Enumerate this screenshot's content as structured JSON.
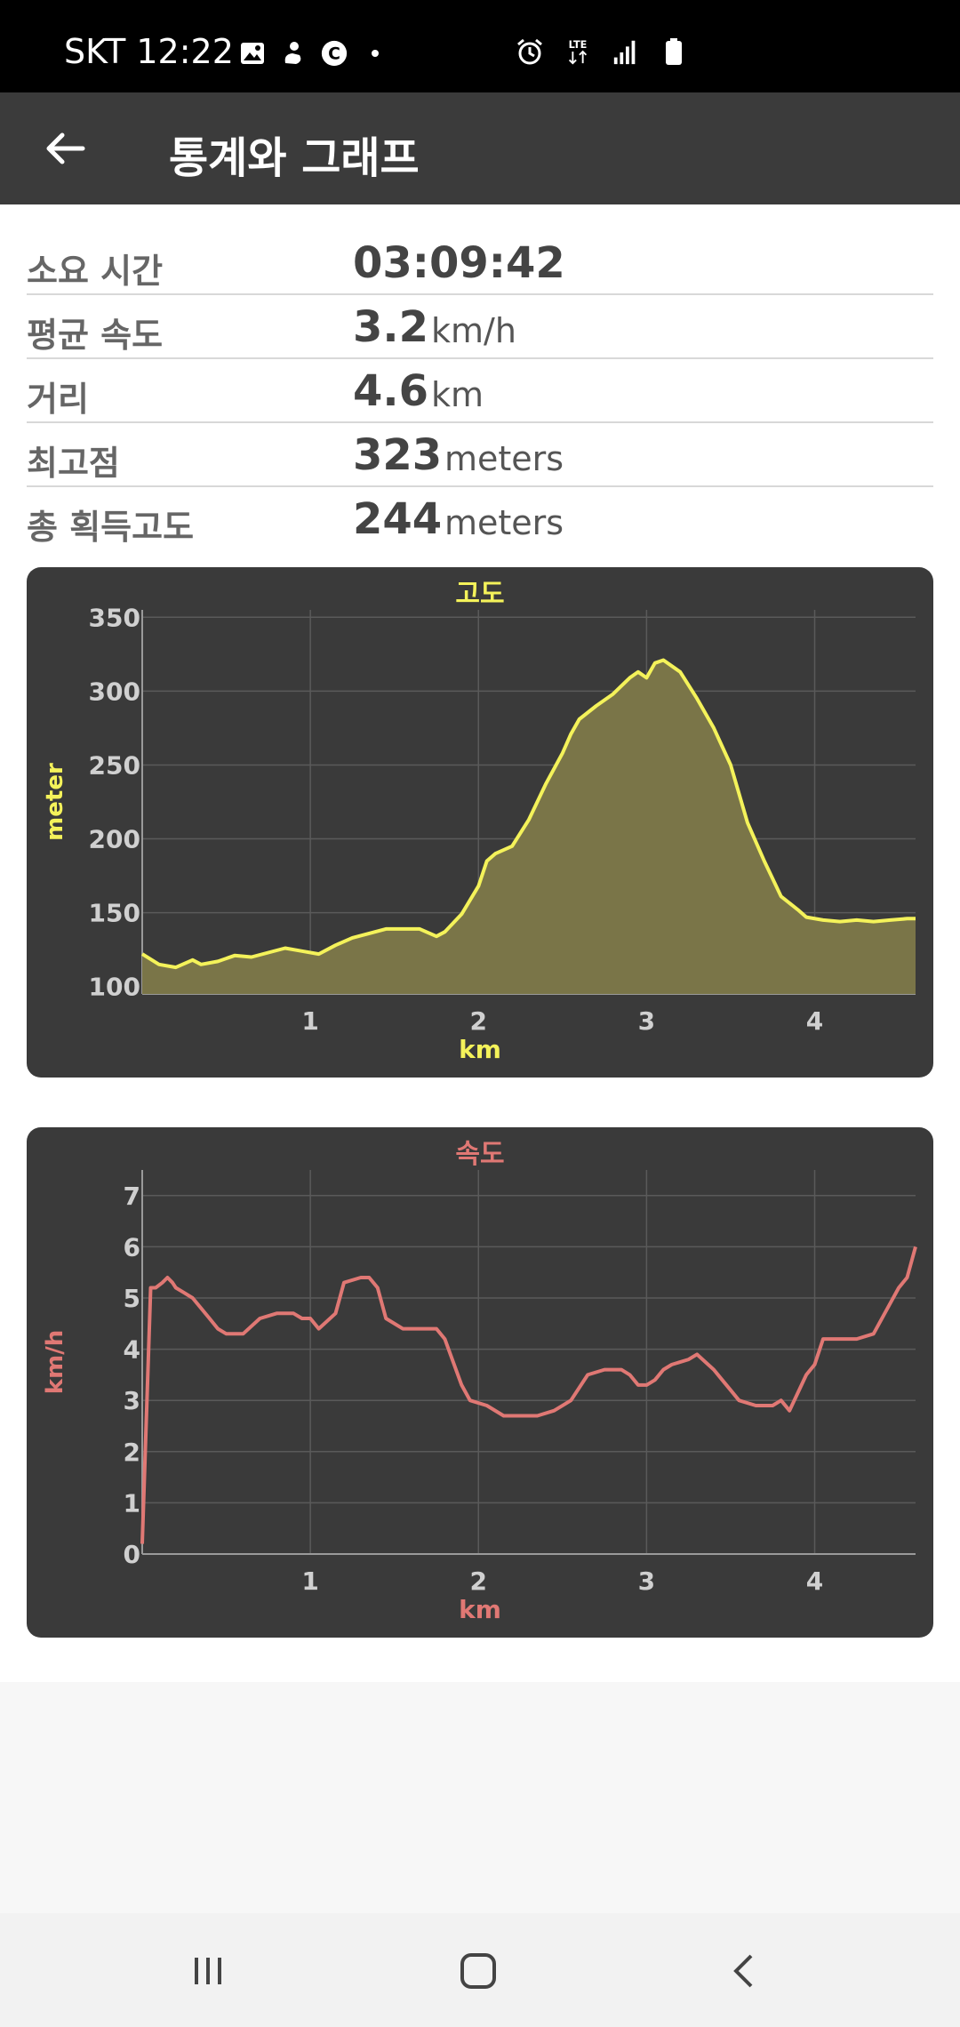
{
  "status_bar": {
    "time": "SKT 12:22",
    "icons": [
      "image-icon",
      "hand-icon",
      "c-icon",
      "dot-icon",
      "alarm-icon",
      "lte-icon",
      "signal-icon",
      "battery-icon"
    ]
  },
  "app_bar": {
    "title": "통계와 그래프",
    "back_icon": "arrow-back-icon"
  },
  "stats": [
    {
      "label": "소요 시간",
      "value": "03:09:42",
      "unit": ""
    },
    {
      "label": "평균 속도",
      "value": "3.2",
      "unit": "km/h"
    },
    {
      "label": "거리",
      "value": "4.6",
      "unit": "km"
    },
    {
      "label": "최고점",
      "value": "323",
      "unit": "meters"
    },
    {
      "label": "총 획득고도",
      "value": "244",
      "unit": "meters"
    }
  ],
  "chart_data": [
    {
      "type": "area",
      "title": "고도",
      "xlabel": "km",
      "ylabel": "meter",
      "xlim": [
        0,
        4.6
      ],
      "ylim": [
        95,
        355
      ],
      "xticks": [
        1,
        2,
        3,
        4
      ],
      "yticks": [
        100,
        150,
        200,
        250,
        300,
        350
      ],
      "grid": true,
      "line_color": "#f4f25a",
      "fill_color": "#7a7548",
      "x": [
        0,
        0.1,
        0.2,
        0.3,
        0.35,
        0.45,
        0.55,
        0.65,
        0.75,
        0.85,
        0.95,
        1.05,
        1.15,
        1.25,
        1.35,
        1.45,
        1.55,
        1.65,
        1.75,
        1.8,
        1.9,
        2.0,
        2.05,
        2.1,
        2.2,
        2.3,
        2.4,
        2.5,
        2.55,
        2.6,
        2.7,
        2.8,
        2.9,
        2.95,
        3.0,
        3.05,
        3.1,
        3.2,
        3.3,
        3.4,
        3.5,
        3.6,
        3.7,
        3.8,
        3.9,
        3.95,
        4.05,
        4.15,
        4.25,
        4.35,
        4.45,
        4.55,
        4.6
      ],
      "y": [
        122,
        115,
        113,
        118,
        115,
        117,
        121,
        120,
        123,
        126,
        124,
        122,
        128,
        133,
        136,
        139,
        139,
        139,
        134,
        137,
        149,
        168,
        185,
        190,
        195,
        213,
        237,
        258,
        271,
        281,
        290,
        298,
        309,
        313,
        309,
        319,
        321,
        313,
        295,
        275,
        250,
        211,
        185,
        161,
        152,
        147,
        145,
        144,
        145,
        144,
        145,
        146,
        146
      ]
    },
    {
      "type": "line",
      "title": "속도",
      "xlabel": "km",
      "ylabel": "km/h",
      "xlim": [
        0,
        4.6
      ],
      "ylim": [
        0,
        7.5
      ],
      "xticks": [
        1,
        2,
        3,
        4
      ],
      "yticks": [
        0,
        1,
        2,
        3,
        4,
        5,
        6,
        7
      ],
      "grid": true,
      "line_color": "#e07874",
      "x": [
        0,
        0.03,
        0.05,
        0.08,
        0.12,
        0.15,
        0.18,
        0.2,
        0.25,
        0.3,
        0.35,
        0.4,
        0.45,
        0.5,
        0.6,
        0.7,
        0.8,
        0.9,
        0.95,
        1.0,
        1.05,
        1.15,
        1.2,
        1.3,
        1.35,
        1.4,
        1.45,
        1.55,
        1.65,
        1.75,
        1.8,
        1.9,
        1.95,
        2.05,
        2.15,
        2.25,
        2.35,
        2.45,
        2.55,
        2.65,
        2.75,
        2.8,
        2.85,
        2.9,
        2.95,
        3.0,
        3.05,
        3.1,
        3.15,
        3.25,
        3.3,
        3.4,
        3.45,
        3.5,
        3.55,
        3.65,
        3.75,
        3.8,
        3.85,
        3.95,
        4.0,
        4.05,
        4.15,
        4.25,
        4.35,
        4.45,
        4.5,
        4.55,
        4.6
      ],
      "y": [
        0.2,
        3.2,
        5.2,
        5.2,
        5.3,
        5.4,
        5.3,
        5.2,
        5.1,
        5.0,
        4.8,
        4.6,
        4.4,
        4.3,
        4.3,
        4.6,
        4.7,
        4.7,
        4.6,
        4.6,
        4.4,
        4.7,
        5.3,
        5.4,
        5.4,
        5.2,
        4.6,
        4.4,
        4.4,
        4.4,
        4.2,
        3.3,
        3.0,
        2.9,
        2.7,
        2.7,
        2.7,
        2.8,
        3.0,
        3.5,
        3.6,
        3.6,
        3.6,
        3.5,
        3.3,
        3.3,
        3.4,
        3.6,
        3.7,
        3.8,
        3.9,
        3.6,
        3.4,
        3.2,
        3.0,
        2.9,
        2.9,
        3.0,
        2.8,
        3.5,
        3.7,
        4.2,
        4.2,
        4.2,
        4.3,
        4.9,
        5.2,
        5.4,
        6.0
      ]
    }
  ],
  "nav_bar": {
    "icons": [
      "recent-apps-icon",
      "home-icon",
      "back-icon"
    ]
  }
}
